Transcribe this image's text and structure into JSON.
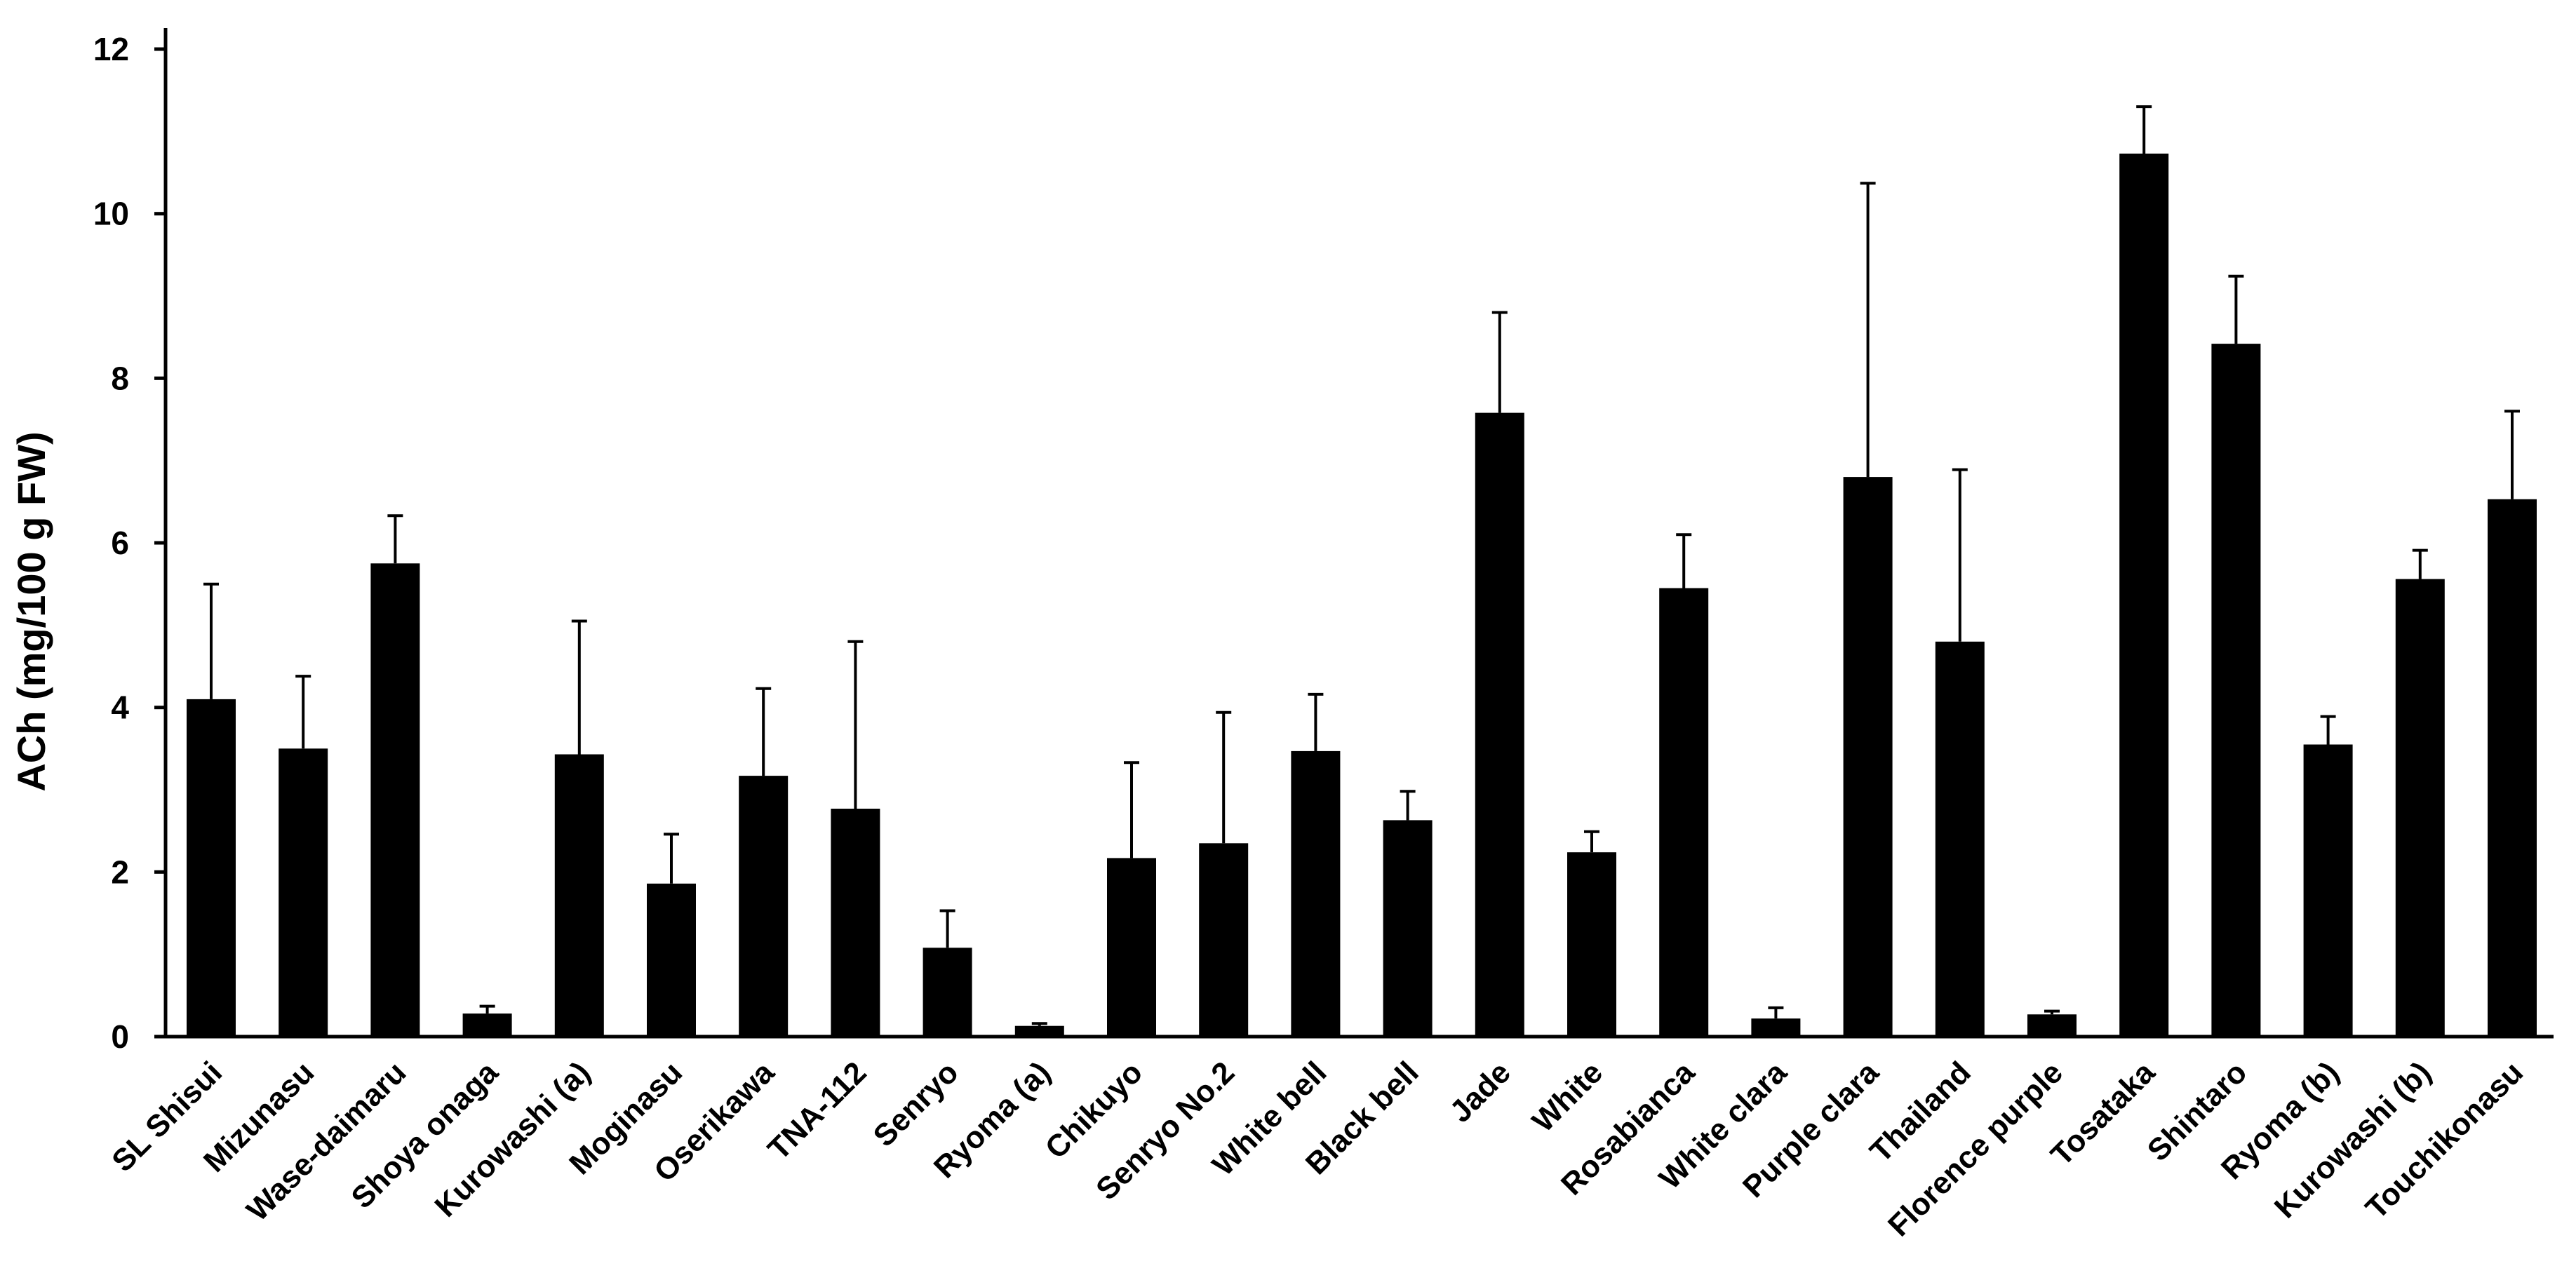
{
  "chart_data": {
    "type": "bar",
    "title": "",
    "xlabel": "",
    "ylabel": "ACh (mg/100 g FW)",
    "ylim": [
      0,
      12
    ],
    "yticks": [
      "0",
      "2",
      "4",
      "6",
      "8",
      "10",
      "12"
    ],
    "grid": false,
    "legend": "none",
    "colors": {
      "bar": "#000000",
      "axis": "#000000",
      "background": "#ffffff"
    },
    "categories": [
      "SL Shisui",
      "Mizunasu",
      "Wase-daimaru",
      "Shoya onaga",
      "Kurowashi (a)",
      "Moginasu",
      "Oserikawa",
      "TNA-112",
      "Senryo",
      "Ryoma (a)",
      "Chikuyo",
      "Senryo No.2",
      "White bell",
      "Black bell",
      "Jade",
      "White",
      "Rosabianca",
      "White clara",
      "Purple clara",
      "Thailand",
      "Florence purple",
      "Tosataka",
      "Shintaro",
      "Ryoma (b)",
      "Kurowashi (b)",
      "Touchikonasu"
    ],
    "values": [
      4.1,
      3.5,
      5.75,
      0.28,
      3.43,
      1.86,
      3.17,
      2.77,
      1.08,
      0.13,
      2.17,
      2.35,
      3.47,
      2.63,
      7.58,
      2.24,
      5.45,
      0.22,
      6.8,
      4.8,
      0.27,
      10.73,
      8.42,
      3.55,
      5.56,
      6.53
    ],
    "error_upper": [
      5.5,
      4.38,
      6.33,
      0.37,
      5.05,
      2.46,
      4.23,
      4.8,
      1.53,
      0.16,
      3.33,
      3.94,
      4.16,
      2.98,
      8.8,
      2.49,
      6.1,
      0.35,
      10.37,
      6.89,
      0.31,
      11.3,
      9.24,
      3.89,
      5.91,
      7.6
    ]
  }
}
